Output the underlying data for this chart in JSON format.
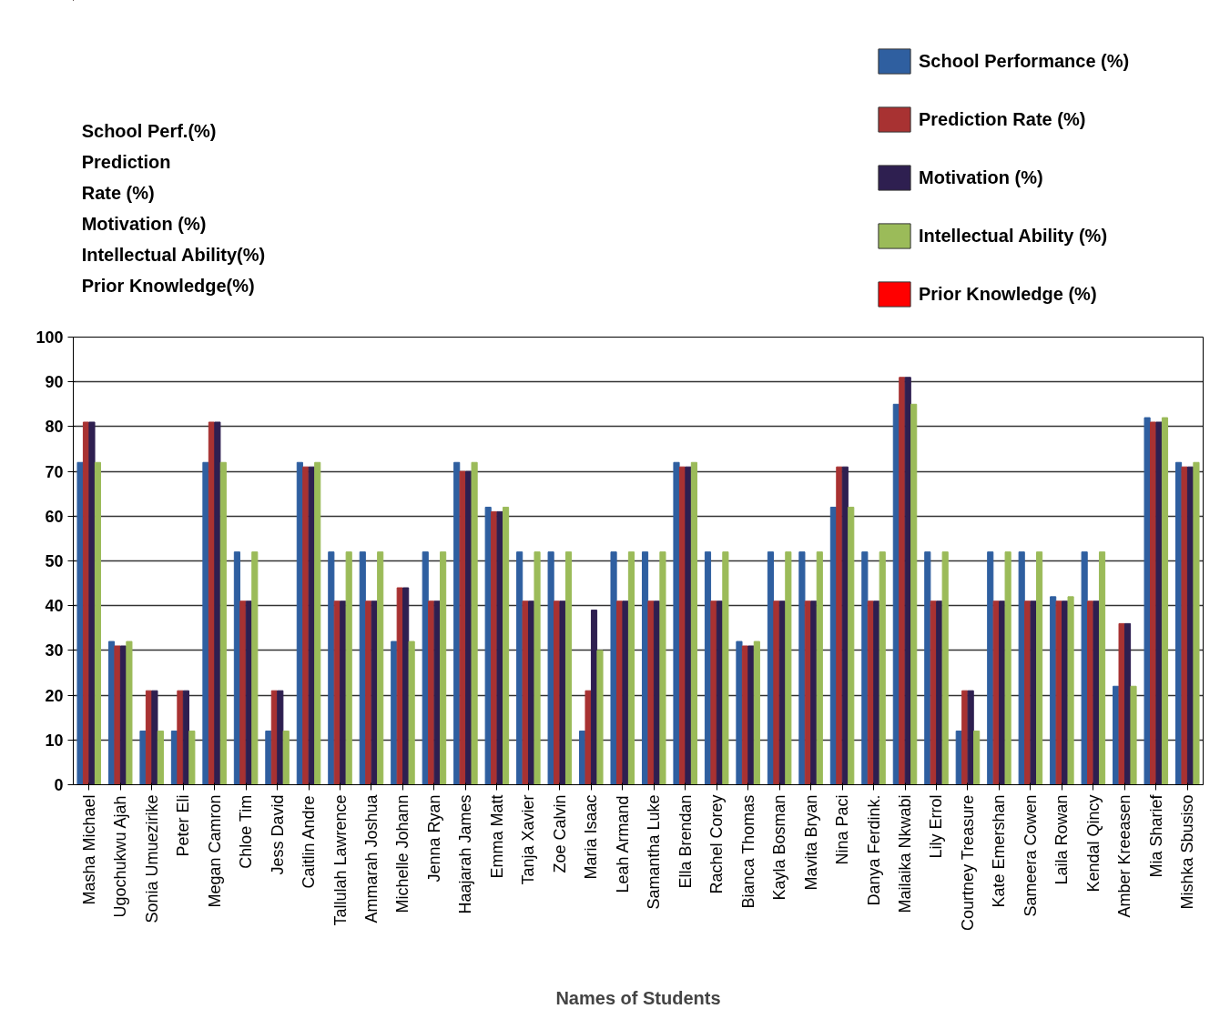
{
  "chart_data": {
    "type": "bar",
    "xlabel": "Names of Students",
    "categories": [
      "Masha Michael",
      "Ugochukwu Ajah",
      "Sonia Umuezirike",
      "Peter Eli",
      "Megan Camron",
      "Chloe Tim",
      "Jess David",
      "Caitlin Andre",
      "Tallulah Lawrence",
      "Ammarah Joshua",
      "Michelle Johann",
      "Jenna Ryan",
      "Haajarah James",
      "Emma Matt",
      "Tanja Xavier",
      "Zoe Calvin",
      "Maria Isaac",
      "Leah Armand",
      "Samantha Luke",
      "Ella Brendan",
      "Rachel Corey",
      "Bianca Thomas",
      "Kayla Bosman",
      "Mavita Bryan",
      "Nina Paci",
      "Danya Ferdink.",
      "Mailaika Nkwabi",
      "Lily Errol",
      "Courtney Treasure",
      "Kate Emershan",
      "Sameera Cowen",
      "Laila Rowan",
      "Kendal Qincy",
      "Amber Kreeasen",
      "Mia Sharief",
      "Mishka Sbusiso"
    ],
    "series": [
      {
        "name": "School Performance (%)",
        "color": "#2f5fa0",
        "values": [
          72,
          32,
          12,
          12,
          72,
          52,
          12,
          72,
          52,
          52,
          32,
          52,
          72,
          62,
          52,
          52,
          12,
          52,
          52,
          72,
          52,
          32,
          52,
          52,
          62,
          52,
          85,
          52,
          12,
          52,
          52,
          42,
          52,
          22,
          82,
          72
        ]
      },
      {
        "name": "Prediction Rate (%)",
        "color": "#a83232",
        "values": [
          81,
          31,
          21,
          21,
          81,
          41,
          21,
          71,
          41,
          41,
          44,
          41,
          70,
          61,
          41,
          41,
          21,
          41,
          41,
          71,
          41,
          31,
          41,
          41,
          71,
          41,
          91,
          41,
          21,
          41,
          41,
          41,
          41,
          36,
          81,
          71
        ]
      },
      {
        "name": "Motivation (%)",
        "color": "#2e1f50",
        "values": [
          81,
          31,
          21,
          21,
          81,
          41,
          21,
          71,
          41,
          41,
          44,
          41,
          70,
          61,
          41,
          41,
          39,
          41,
          41,
          71,
          41,
          31,
          41,
          41,
          71,
          41,
          91,
          41,
          21,
          41,
          41,
          41,
          41,
          36,
          81,
          71
        ]
      },
      {
        "name": "Intellectual Ability (%)",
        "color": "#9bbb59",
        "values": [
          72,
          32,
          12,
          12,
          72,
          52,
          12,
          72,
          52,
          52,
          32,
          52,
          72,
          62,
          52,
          52,
          30,
          52,
          52,
          72,
          52,
          32,
          52,
          52,
          62,
          52,
          85,
          52,
          12,
          52,
          52,
          42,
          52,
          22,
          82,
          72
        ]
      },
      {
        "name": "Prior Knowledge (%)",
        "color": "#ff0000",
        "values": [
          null,
          null,
          null,
          null,
          null,
          null,
          null,
          null,
          null,
          null,
          null,
          null,
          null,
          null,
          null,
          null,
          null,
          null,
          null,
          null,
          null,
          null,
          null,
          null,
          null,
          null,
          null,
          null,
          null,
          null,
          null,
          null,
          null,
          null,
          null,
          null
        ]
      }
    ],
    "ylim": [
      0,
      100
    ],
    "yticks": [
      0,
      10,
      20,
      30,
      40,
      50,
      60,
      70,
      80,
      90,
      100
    ],
    "grid": "y",
    "legend": "top right",
    "annotations": [
      "School Perf.(%)\nPrediction\n Rate (%)\nMotivation (%)\nIntellectual Ability(%)\nPrior Knowledge(%)"
    ]
  }
}
